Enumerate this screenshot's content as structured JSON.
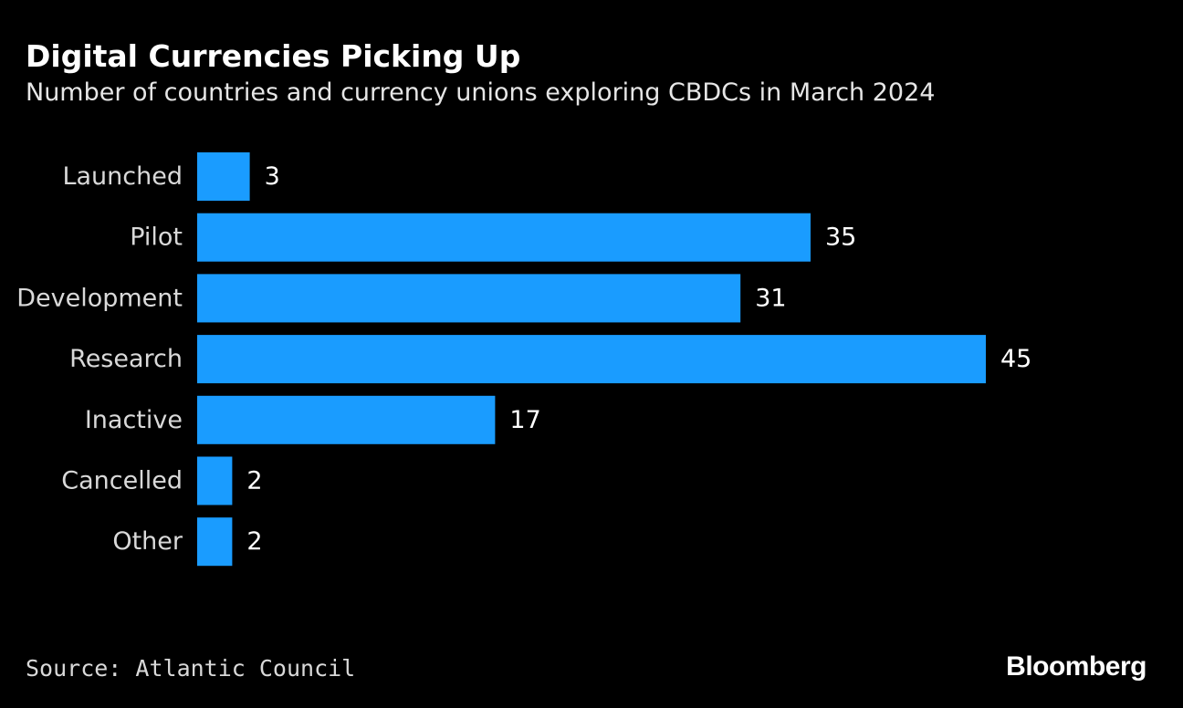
{
  "colors": {
    "background": "#000000",
    "bar": "#1a9cff",
    "text": "#ffffff",
    "muted_text": "#d9d9d9"
  },
  "source": "Source: Atlantic Council",
  "brand": "Bloomberg",
  "chart_data": {
    "type": "bar",
    "orientation": "horizontal",
    "title": "Digital Currencies Picking Up",
    "subtitle": "Number of countries and currency unions exploring CBDCs in March 2024",
    "categories": [
      "Launched",
      "Pilot",
      "Development",
      "Research",
      "Inactive",
      "Cancelled",
      "Other"
    ],
    "values": [
      3,
      35,
      31,
      45,
      17,
      2,
      2
    ],
    "data_labels": [
      "3",
      "35",
      "31",
      "45",
      "17",
      "2",
      "2"
    ],
    "xlim": [
      0,
      45
    ],
    "grid": false,
    "legend": "none"
  }
}
